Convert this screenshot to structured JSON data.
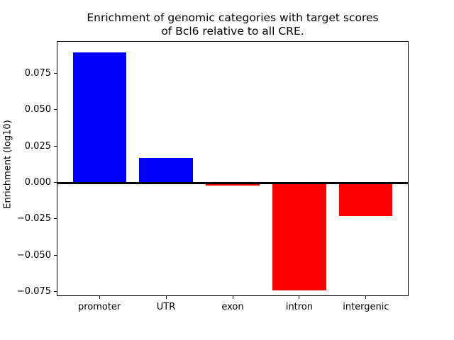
{
  "figure": {
    "title_line1": "Enrichment of genomic categories with target scores",
    "title_line2": "of Bcl6 relative to all CRE.",
    "ylabel": "Enrichment (log10)"
  },
  "chart_data": {
    "type": "bar",
    "title": "Enrichment of genomic categories with target scores of Bcl6 relative to all CRE.",
    "xlabel": "",
    "ylabel": "Enrichment (log10)",
    "categories": [
      "promoter",
      "UTR",
      "exon",
      "intron",
      "intergenic"
    ],
    "values": [
      0.089,
      0.017,
      -0.002,
      -0.074,
      -0.023
    ],
    "bar_colors": [
      "#0000ff",
      "#0000ff",
      "#ff0000",
      "#ff0000",
      "#ff0000"
    ],
    "positive_color": "#0000ff",
    "negative_color": "#ff0000",
    "yticks": [
      0.075,
      0.05,
      0.025,
      0.0,
      -0.025,
      -0.05,
      -0.075
    ],
    "ytick_labels": [
      "0.075",
      "0.050",
      "0.025",
      "0.000",
      "−0.025",
      "−0.050",
      "−0.075"
    ],
    "ylim": [
      -0.078,
      0.097
    ],
    "xlim": [
      -0.64,
      4.64
    ],
    "bar_width": 0.8,
    "zero_line": true,
    "zero_line_color": "#000000",
    "grid": false,
    "legend": "none",
    "background": "#ffffff"
  }
}
